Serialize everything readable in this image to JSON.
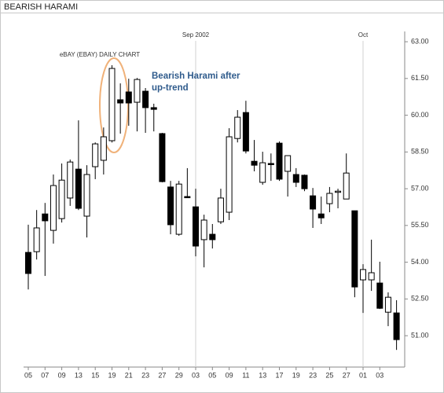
{
  "header": {
    "title": "BEARISH HARAMI"
  },
  "chart_data": {
    "type": "candlestick",
    "subtitle": "eBAY (EBAY) DAILY CHART",
    "annotation": "Bearish Harami after up-trend",
    "categories": [
      "05",
      null,
      "07",
      null,
      "09",
      null,
      "13",
      null,
      "15",
      null,
      "19",
      null,
      "21",
      null,
      "23",
      null,
      "27",
      null,
      "29",
      null,
      "03",
      null,
      "05",
      null,
      "09",
      null,
      "11",
      null,
      "13",
      null,
      "17",
      null,
      "19",
      null,
      "23",
      null,
      "25",
      null,
      "27",
      null,
      "01",
      null,
      "03",
      null,
      null
    ],
    "open": [
      54.4,
      54.43,
      55.97,
      55.3,
      55.78,
      56.62,
      57.8,
      55.88,
      57.9,
      58.16,
      58.96,
      60.63,
      60.95,
      60.53,
      60.98,
      60.31,
      59.25,
      57.07,
      55.14,
      56.68,
      56.26,
      54.92,
      55.14,
      55.65,
      56.04,
      59.05,
      60.11,
      58.12,
      57.26,
      58.03,
      58.86,
      57.71,
      57.58,
      57.55,
      56.71,
      55.97,
      56.39,
      56.87,
      56.58,
      56.1,
      53.28,
      53.28,
      53.15,
      51.96,
      51.93
    ],
    "high": [
      55.53,
      56.13,
      56.42,
      57.58,
      58.03,
      58.19,
      59.79,
      57.96,
      58.89,
      59.5,
      62.04,
      61.3,
      61.49,
      61.52,
      61.11,
      60.47,
      59.28,
      57.32,
      57.32,
      57.84,
      57.0,
      55.94,
      55.56,
      57.0,
      59.47,
      60.21,
      60.59,
      58.99,
      58.51,
      58.44,
      58.93,
      58.35,
      57.84,
      57.58,
      57.03,
      56.68,
      57.07,
      57.0,
      58.44,
      56.1,
      53.92,
      54.92,
      54.02,
      52.77,
      52.45
    ],
    "low": [
      52.89,
      54.11,
      53.44,
      54.76,
      55.62,
      56.3,
      56.13,
      55.01,
      57.39,
      57.58,
      58.89,
      59.25,
      59.57,
      59.34,
      59.28,
      59.34,
      57.26,
      55.14,
      55.08,
      56.62,
      54.24,
      53.79,
      54.56,
      55.56,
      55.72,
      58.89,
      58.44,
      57.71,
      57.16,
      57.32,
      57.32,
      56.68,
      57.07,
      56.9,
      55.4,
      55.56,
      56.04,
      56.2,
      56.58,
      52.57,
      51.93,
      52.83,
      52.09,
      51.39,
      50.42
    ],
    "close": [
      53.54,
      55.4,
      55.69,
      57.13,
      57.35,
      58.09,
      56.2,
      57.58,
      58.83,
      59.12,
      61.91,
      60.5,
      60.5,
      61.46,
      60.31,
      60.24,
      57.29,
      55.53,
      57.19,
      56.65,
      54.66,
      55.72,
      54.92,
      56.62,
      59.12,
      59.92,
      58.54,
      57.96,
      58.06,
      57.99,
      57.39,
      58.35,
      57.26,
      57.0,
      56.17,
      55.81,
      56.81,
      56.9,
      57.64,
      52.99,
      53.7,
      53.57,
      52.12,
      52.57,
      50.84
    ],
    "up_color": "#ffffff",
    "down_color": "#000000",
    "month_markers": [
      {
        "at": 20,
        "label": "Sep 2002"
      },
      {
        "at": 40,
        "label": "Oct"
      }
    ],
    "ylim": [
      49.72,
      63.42
    ],
    "yticks": [
      {
        "value": 51,
        "label": "51.00"
      },
      {
        "value": 52.5,
        "label": "52.50"
      },
      {
        "value": 54,
        "label": "54.00"
      },
      {
        "value": 55.5,
        "label": "55.50"
      },
      {
        "value": 57,
        "label": "57.00"
      },
      {
        "value": 58.5,
        "label": "58.50"
      },
      {
        "value": 60,
        "label": "60.00"
      },
      {
        "value": 61.5,
        "label": "61.50"
      },
      {
        "value": 63,
        "label": "63.00"
      }
    ],
    "y_axis_side": "right"
  }
}
